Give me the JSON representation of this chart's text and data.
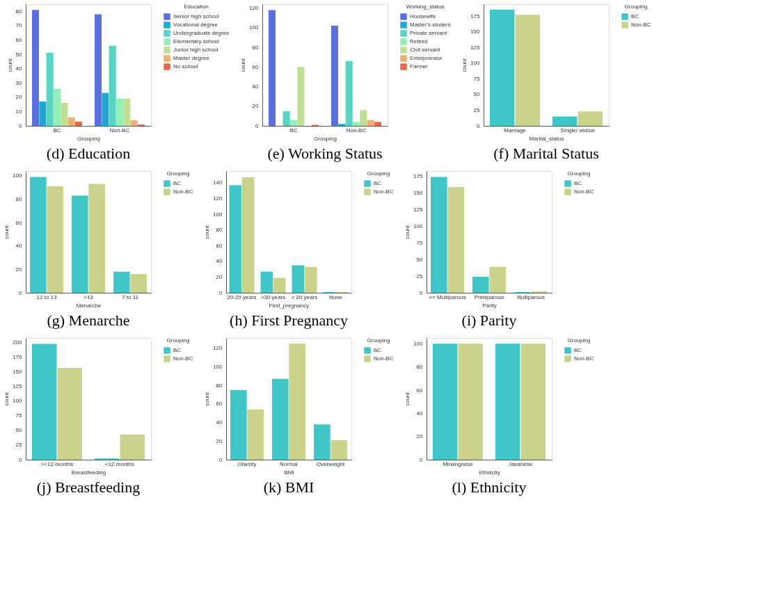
{
  "chart_data": [
    {
      "type": "bar",
      "title": "(d) Education",
      "xlabel": "Grouping",
      "ylabel": "count",
      "legend_title": "Education",
      "legend": "right",
      "grid": false,
      "categories": [
        "BC",
        "Non-BC"
      ],
      "ylim": [
        0,
        85
      ],
      "yticks": [
        0,
        10,
        20,
        30,
        40,
        50,
        60,
        70,
        80
      ],
      "series": [
        {
          "name": "Senior high school",
          "color": "#5a6fe0",
          "values": [
            81,
            78
          ]
        },
        {
          "name": "Vocational degree",
          "color": "#20a6d2",
          "values": [
            17,
            23
          ]
        },
        {
          "name": "Undergraduate degree",
          "color": "#55d6c3",
          "values": [
            51,
            56
          ]
        },
        {
          "name": "Elementary school",
          "color": "#93efb5",
          "values": [
            26,
            19
          ]
        },
        {
          "name": "Junior high school",
          "color": "#c1de95",
          "values": [
            16,
            19
          ]
        },
        {
          "name": "Master degree",
          "color": "#edb070",
          "values": [
            6,
            4
          ]
        },
        {
          "name": "No school",
          "color": "#e8684b",
          "values": [
            3,
            1
          ]
        }
      ]
    },
    {
      "type": "bar",
      "title": "(e) Working Status",
      "xlabel": "Grouping",
      "ylabel": "count",
      "legend_title": "Working_status",
      "legend": "right",
      "grid": false,
      "categories": [
        "BC",
        "Non-BC"
      ],
      "ylim": [
        0,
        124
      ],
      "yticks": [
        0,
        20,
        40,
        60,
        80,
        100,
        120
      ],
      "series": [
        {
          "name": "Housewife",
          "color": "#5a6fe0",
          "values": [
            118,
            102
          ]
        },
        {
          "name": "Master's student",
          "color": "#20a6d2",
          "values": [
            0,
            2
          ]
        },
        {
          "name": "Private servant",
          "color": "#55d6c3",
          "values": [
            15,
            66
          ]
        },
        {
          "name": "Retired",
          "color": "#93efb5",
          "values": [
            6,
            4
          ]
        },
        {
          "name": "Civil servant",
          "color": "#c1de95",
          "values": [
            60,
            16
          ]
        },
        {
          "name": "Enterpreneur",
          "color": "#edb070",
          "values": [
            0,
            6
          ]
        },
        {
          "name": "Farmer",
          "color": "#e8684b",
          "values": [
            1,
            4
          ]
        }
      ]
    },
    {
      "type": "bar",
      "title": "(f) Marital Status",
      "xlabel": "Marital_status",
      "ylabel": "count",
      "legend_title": "Grouping",
      "legend": "right",
      "grid": false,
      "categories": [
        "Marriage",
        "Single/ widow"
      ],
      "ylim": [
        0,
        194
      ],
      "yticks": [
        0,
        25,
        50,
        75,
        100,
        125,
        150,
        175
      ],
      "series": [
        {
          "name": "BC",
          "color": "#41c6c7",
          "values": [
            185,
            15
          ]
        },
        {
          "name": "Non-BC",
          "color": "#cbd28b",
          "values": [
            177,
            23
          ]
        }
      ]
    },
    {
      "type": "bar",
      "title": "(g) Menarche",
      "xlabel": "Menarche",
      "ylabel": "count",
      "legend_title": "Grouping",
      "legend": "right",
      "grid": false,
      "categories": [
        "12  to 13",
        ">13",
        "7 to 11"
      ],
      "ylim": [
        0,
        104
      ],
      "yticks": [
        0,
        20,
        40,
        60,
        80,
        100
      ],
      "series": [
        {
          "name": "BC",
          "color": "#41c6c7",
          "values": [
            99,
            83,
            18
          ]
        },
        {
          "name": "Non-BC",
          "color": "#cbd28b",
          "values": [
            91,
            93,
            16
          ]
        }
      ]
    },
    {
      "type": "bar",
      "title": "(h) First Pregnancy",
      "xlabel": "First_pregnancy",
      "ylabel": "count",
      "legend_title": "Grouping",
      "legend": "right",
      "grid": false,
      "categories": [
        "20-29 years",
        ">30 years",
        "< 20 years",
        "None"
      ],
      "ylim": [
        0,
        155
      ],
      "yticks": [
        0,
        20,
        40,
        60,
        80,
        100,
        120,
        140
      ],
      "series": [
        {
          "name": "BC",
          "color": "#41c6c7",
          "values": [
            137,
            27,
            35,
            1
          ]
        },
        {
          "name": "Non-BC",
          "color": "#cbd28b",
          "values": [
            147,
            19,
            33,
            1
          ]
        }
      ]
    },
    {
      "type": "bar",
      "title": "(i) Parity",
      "xlabel": "Parity",
      "ylabel": "count",
      "legend_title": "Grouping",
      "legend": "right",
      "grid": false,
      "categories": [
        ">= Multiparous",
        "Primiparous",
        "Nulliparous"
      ],
      "ylim": [
        0,
        183
      ],
      "yticks": [
        0,
        25,
        50,
        75,
        100,
        125,
        150,
        175
      ],
      "series": [
        {
          "name": "BC",
          "color": "#41c6c7",
          "values": [
            174,
            24,
            1
          ]
        },
        {
          "name": "Non-BC",
          "color": "#cbd28b",
          "values": [
            159,
            39,
            2
          ]
        }
      ]
    },
    {
      "type": "bar",
      "title": "(j) Breastfeeding",
      "xlabel": "Breastfeeding",
      "ylabel": "count",
      "legend_title": "Grouping",
      "legend": "right",
      "grid": false,
      "categories": [
        ">=12 months",
        "<12 months"
      ],
      "ylim": [
        0,
        208
      ],
      "yticks": [
        0,
        25,
        50,
        75,
        100,
        125,
        150,
        175,
        200
      ],
      "series": [
        {
          "name": "BC",
          "color": "#41c6c7",
          "values": [
            198,
            2
          ]
        },
        {
          "name": "Non-BC",
          "color": "#cbd28b",
          "values": [
            157,
            43
          ]
        }
      ]
    },
    {
      "type": "bar",
      "title": "(k) BMI",
      "xlabel": "BMI",
      "ylabel": "count",
      "legend_title": "Grouping",
      "legend": "right",
      "grid": false,
      "categories": [
        "Obesity",
        "Normal",
        "Overweight"
      ],
      "ylim": [
        0,
        131
      ],
      "yticks": [
        0,
        20,
        40,
        60,
        80,
        100,
        120
      ],
      "series": [
        {
          "name": "BC",
          "color": "#41c6c7",
          "values": [
            75,
            87,
            38
          ]
        },
        {
          "name": "Non-BC",
          "color": "#cbd28b",
          "values": [
            54,
            125,
            21
          ]
        }
      ]
    },
    {
      "type": "bar",
      "title": "(l) Ethnicity",
      "xlabel": "Ethnicity",
      "ylabel": "count",
      "legend_title": "Grouping",
      "legend": "right",
      "grid": false,
      "categories": [
        "Minangnese",
        "Javanese"
      ],
      "ylim": [
        0,
        105
      ],
      "yticks": [
        0,
        20,
        40,
        60,
        80,
        100
      ],
      "series": [
        {
          "name": "BC",
          "color": "#41c6c7",
          "values": [
            100,
            100
          ]
        },
        {
          "name": "Non-BC",
          "color": "#cbd28b",
          "values": [
            100,
            100
          ]
        }
      ]
    }
  ]
}
